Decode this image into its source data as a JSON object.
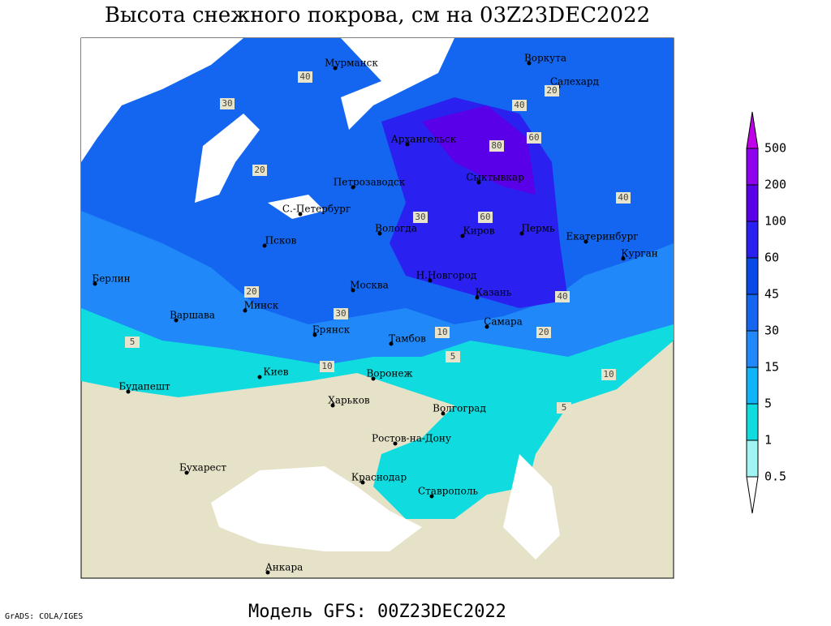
{
  "title": "Высота снежного покрова, см на 03Z23DEC2022",
  "subtitle": "Модель GFS: 00Z23DEC2022",
  "credit": "GrADS: COLA/IGES",
  "cities": [
    "Мурманск",
    "Воркута",
    "Салехард",
    "Архангельск",
    "Сыктывкар",
    "Петрозаводск",
    "С.-Петербург",
    "Вологда",
    "Киров",
    "Пермь",
    "Екатеринбург",
    "Курган",
    "Псков",
    "Н.Новгород",
    "Казань",
    "Москва",
    "Берлин",
    "Минск",
    "Варшава",
    "Брянск",
    "Тамбов",
    "Самара",
    "Киев",
    "Воронеж",
    "Будапешт",
    "Харьков",
    "Волгоград",
    "Ростов-на-Дону",
    "Бухарест",
    "Краснодар",
    "Ставрополь",
    "Анкара"
  ],
  "contour_labels": [
    40,
    30,
    20,
    80,
    60,
    40,
    20,
    30,
    60,
    40,
    20,
    10,
    5,
    10,
    5,
    40,
    20,
    30,
    10,
    5
  ],
  "legend": {
    "levels": [
      500,
      200,
      100,
      60,
      45,
      30,
      15,
      5,
      1,
      0.5
    ],
    "colors": [
      "#c000e8",
      "#9000f0",
      "#5a00e8",
      "#2a20f0",
      "#0848e8",
      "#1466f0",
      "#2088f8",
      "#10b4f8",
      "#10dce0",
      "#a0f4f4",
      "#ffffff"
    ]
  }
}
